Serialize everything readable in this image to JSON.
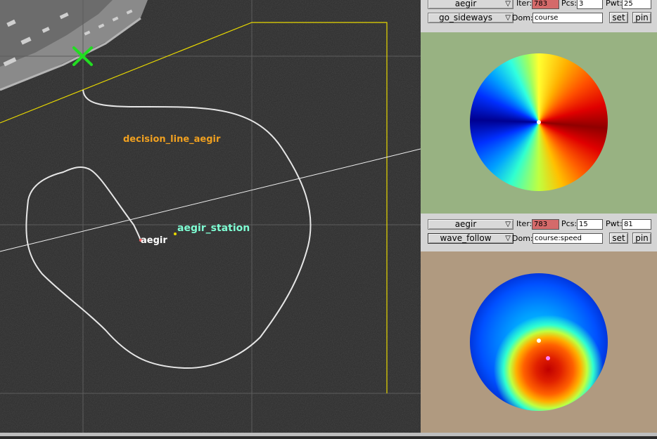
{
  "map": {
    "labels": {
      "decision_line": "decision_line_aegir",
      "station": "aegir_station",
      "vehicle": "aegir"
    },
    "colors": {
      "decision_line": "#f0a020",
      "station": "#7fffd4",
      "vehicle": "#ffffff",
      "region": "#e8d800",
      "track": "#e6e6e6",
      "marker": "#22dd22"
    }
  },
  "panel_top": {
    "vehicle": "aegir",
    "behavior": "go_sideways",
    "iter_label": "Iter:",
    "iter_value": "783",
    "pcs_label": "Pcs:",
    "pcs_value": "3",
    "pwt_label": "Pwt:",
    "pwt_value": "25",
    "dom_label": "Dom:",
    "dom_value": "course",
    "set_label": "set",
    "pin_label": "pin",
    "bg_color": "#98b282"
  },
  "panel_bottom": {
    "vehicle": "aegir",
    "behavior": "wave_follow",
    "iter_label": "Iter:",
    "iter_value": "783",
    "pcs_label": "Pcs:",
    "pcs_value": "15",
    "pwt_label": "Pwt:",
    "pwt_value": "81",
    "dom_label": "Dom:",
    "dom_value": "course:speed",
    "set_label": "set",
    "pin_label": "pin",
    "bg_color": "#b09a80"
  }
}
